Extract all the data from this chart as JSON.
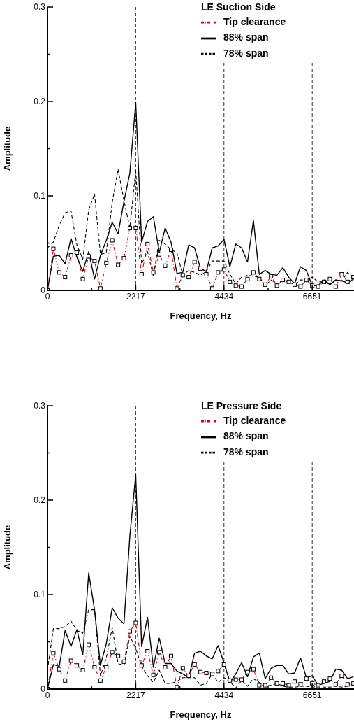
{
  "chart_data": [
    {
      "type": "line",
      "legend_title": "LE Suction Side",
      "xlabel": "Frequency, Hz",
      "ylabel": "Amplitude",
      "x": [
        0,
        148,
        296,
        443,
        591,
        739,
        887,
        1035,
        1182,
        1330,
        1478,
        1626,
        1774,
        1921,
        2069,
        2217,
        2365,
        2513,
        2660,
        2808,
        2956,
        3104,
        3252,
        3399,
        3547,
        3695,
        3843,
        3991,
        4138,
        4286,
        4434,
        4582,
        4730,
        4877,
        5025,
        5173,
        5321,
        5469,
        5616,
        5764,
        5912,
        6060,
        6208,
        6355,
        6503,
        6651,
        6799,
        6947,
        7094,
        7242,
        7390,
        7538,
        7686
      ],
      "series": [
        {
          "name": "Tip clearance",
          "color": "#e00000",
          "line_style": "dashdot",
          "marker": "square",
          "values": [
            0,
            0.044,
            0.019,
            0.014,
            0.037,
            0.04,
            0.012,
            0.036,
            0.031,
            0.002,
            0.029,
            0.053,
            0.027,
            0.034,
            0.066,
            0.066,
            0.017,
            0.049,
            0.019,
            0.038,
            0.026,
            0.043,
            0.002,
            0.016,
            0.014,
            0.03,
            0.023,
            0.017,
            0.002,
            0.019,
            0.022,
            0.009,
            0.005,
            0.004,
            0.012,
            0.019,
            0.012,
            0.006,
            0.015,
            0.005,
            0.011,
            0.009,
            0.006,
            0.004,
            0.011,
            0.005,
            0.004,
            0.009,
            0.012,
            0.004,
            0.017,
            0.009,
            0.014
          ]
        },
        {
          "name": "88% span",
          "color": "#000000",
          "line_style": "solid",
          "marker": "none",
          "values": [
            0,
            0.036,
            0.037,
            0.028,
            0.055,
            0.035,
            0.02,
            0.041,
            0.012,
            0.037,
            0.053,
            0.072,
            0.06,
            0.094,
            0.124,
            0.199,
            0.051,
            0.073,
            0.078,
            0.04,
            0.066,
            0.051,
            0.018,
            0.019,
            0.048,
            0.045,
            0.023,
            0.02,
            0.045,
            0.047,
            0.054,
            0.025,
            0.049,
            0.045,
            0.03,
            0.074,
            0.017,
            0.021,
            0.017,
            0.016,
            0.024,
            0.014,
            0.007,
            0.025,
            0.021,
            0.005,
            0.005,
            0.011,
            0.006,
            0.011,
            0.01,
            0.008,
            0.012
          ]
        },
        {
          "name": "78% span",
          "color": "#000000",
          "line_style": "dashed",
          "marker": "none",
          "values": [
            0.045,
            0.051,
            0.069,
            0.082,
            0.084,
            0.048,
            0.033,
            0.085,
            0.102,
            0.038,
            0.04,
            0.093,
            0.128,
            0.095,
            0.066,
            0.127,
            0.028,
            0.041,
            0.015,
            0.053,
            0.049,
            0.043,
            0.04,
            0.016,
            0.021,
            0.019,
            0.016,
            0.02,
            0.031,
            0.031,
            0.031,
            0.017,
            0.007,
            0.014,
            0.016,
            0.015,
            0.014,
            0.005,
            0.011,
            0.007,
            0.011,
            0.009,
            0.006,
            0.011,
            0.011,
            0.014,
            0.009,
            0.009,
            0.006,
            0.011,
            0.01,
            0.019,
            0.012
          ]
        }
      ],
      "xlim": [
        0,
        7700
      ],
      "xticks": [
        0,
        {
          "value": 1108,
          "label": null
        },
        2217,
        {
          "value": 3325,
          "label": null
        },
        4434,
        {
          "value": 5542,
          "label": null
        },
        6651
      ],
      "ylim": [
        0,
        0.3
      ],
      "yticks": [
        0,
        {
          "value": 0.05,
          "label": null
        },
        0.1,
        {
          "value": 0.15,
          "label": null
        },
        0.2,
        {
          "value": 0.25,
          "label": null
        },
        0.3
      ],
      "ref_lines": [
        {
          "axis": "x",
          "value": 2217,
          "line_style": "dashed"
        },
        {
          "axis": "x",
          "value": 4434,
          "line_style": "dashed"
        },
        {
          "axis": "x",
          "value": 6651,
          "line_style": "dashed"
        }
      ],
      "grid": false,
      "legend": "top right"
    },
    {
      "type": "line",
      "legend_title": "LE Pressure Side",
      "xlabel": "Frequency, Hz",
      "ylabel": "Amplitude",
      "x": [
        0,
        148,
        296,
        443,
        591,
        739,
        887,
        1035,
        1182,
        1330,
        1478,
        1626,
        1774,
        1921,
        2069,
        2217,
        2365,
        2513,
        2660,
        2808,
        2956,
        3104,
        3252,
        3399,
        3547,
        3695,
        3843,
        3991,
        4138,
        4286,
        4434,
        4582,
        4730,
        4877,
        5025,
        5173,
        5321,
        5469,
        5616,
        5764,
        5912,
        6060,
        6208,
        6355,
        6503,
        6651,
        6799,
        6947,
        7094,
        7242,
        7390,
        7538,
        7686
      ],
      "series": [
        {
          "name": "Tip clearance",
          "color": "#e00000",
          "line_style": "dashdot",
          "marker": "square",
          "values": [
            0,
            0.038,
            0.021,
            0.009,
            0.03,
            0.025,
            0.02,
            0.047,
            0.023,
            0.009,
            0.023,
            0.039,
            0.035,
            0.029,
            0.061,
            0.07,
            0.025,
            0.04,
            0.015,
            0.039,
            0.023,
            0.035,
            0.002,
            0.022,
            0.014,
            0.026,
            0.018,
            0.017,
            0.016,
            0.019,
            0.026,
            0.009,
            0.01,
            0.01,
            0.018,
            0.021,
            0.004,
            0.004,
            0.012,
            0.006,
            0.006,
            0.004,
            0.008,
            0.005,
            0.011,
            0.006,
            0.004,
            0.008,
            0.011,
            0.005,
            0.014,
            0.005,
            0.006
          ]
        },
        {
          "name": "88% span",
          "color": "#000000",
          "line_style": "solid",
          "marker": "none",
          "values": [
            0,
            0.026,
            0.024,
            0.062,
            0.045,
            0.063,
            0.036,
            0.123,
            0.084,
            0.025,
            0.048,
            0.086,
            0.075,
            0.069,
            0.162,
            0.227,
            0.045,
            0.076,
            0.023,
            0.054,
            0.027,
            0.027,
            0.019,
            0.016,
            0.012,
            0.038,
            0.04,
            0.035,
            0.032,
            0.046,
            0.028,
            0.007,
            0.016,
            0.028,
            0.013,
            0.034,
            0.038,
            0.011,
            0.022,
            0.025,
            0.025,
            0.016,
            0.017,
            0.033,
            0.012,
            0.014,
            0.004,
            0.006,
            0.008,
            0.021,
            0.02,
            0.011,
            0.013
          ]
        },
        {
          "name": "78% span",
          "color": "#000000",
          "line_style": "dashed",
          "marker": "none",
          "values": [
            0.02,
            0.064,
            0.064,
            0.066,
            0.072,
            0.062,
            0.059,
            0.084,
            0.084,
            0.014,
            0.033,
            0.065,
            0.027,
            0.025,
            0.056,
            0.043,
            0.024,
            0.014,
            0.007,
            0.02,
            0.006,
            0.006,
            0.008,
            0.012,
            0.012,
            0.012,
            0.004,
            0.006,
            0.016,
            0.007,
            0.012,
            0.008,
            0.001,
            0.009,
            0.003,
            0.011,
            0.007,
            0.003,
            0.004,
            0.006,
            0.003,
            0.002,
            0.002,
            0.003,
            0.003,
            0.002,
            0.003,
            0.002,
            0.002,
            0.003,
            0.002,
            0.003,
            0.004
          ]
        }
      ],
      "xlim": [
        0,
        7700
      ],
      "xticks": [
        0,
        {
          "value": 1108,
          "label": null
        },
        2217,
        {
          "value": 3325,
          "label": null
        },
        4434,
        {
          "value": 5542,
          "label": null
        },
        6651
      ],
      "ylim": [
        0,
        0.3
      ],
      "yticks": [
        0,
        {
          "value": 0.05,
          "label": null
        },
        0.1,
        {
          "value": 0.15,
          "label": null
        },
        0.2,
        {
          "value": 0.25,
          "label": null
        },
        0.3
      ],
      "ref_lines": [
        {
          "axis": "x",
          "value": 2217,
          "line_style": "dashed"
        },
        {
          "axis": "x",
          "value": 4434,
          "line_style": "dashed"
        },
        {
          "axis": "x",
          "value": 6651,
          "line_style": "dashed"
        }
      ],
      "grid": false,
      "legend": "top right"
    }
  ]
}
